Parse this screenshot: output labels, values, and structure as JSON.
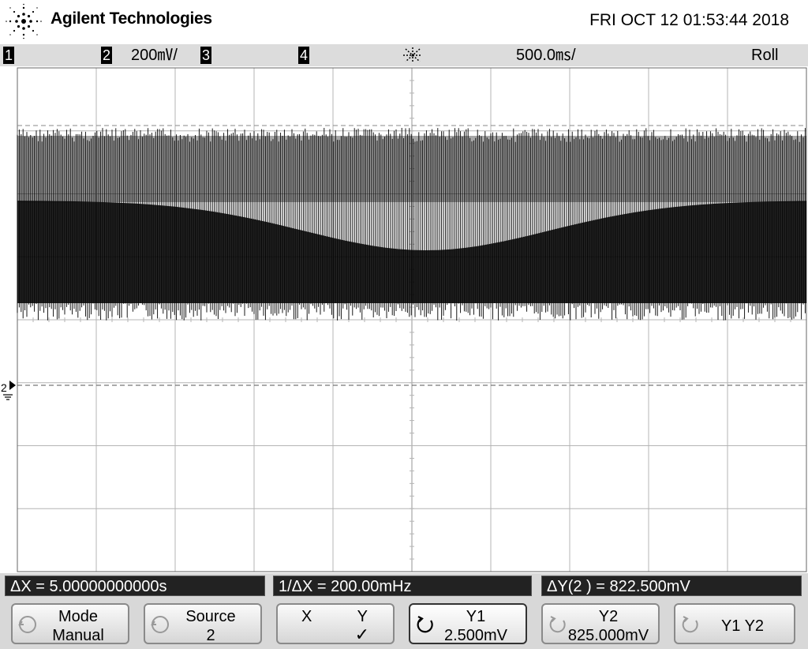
{
  "header": {
    "brand": "Agilent Technologies",
    "datetime": "FRI OCT 12 01:53:44 2018"
  },
  "status": {
    "ch1_label": "1",
    "ch2_label": "2",
    "ch2_scale": "200㎷/",
    "ch3_label": "3",
    "ch4_label": "4",
    "timebase": "500.0㎳/",
    "mode": "Roll"
  },
  "screen": {
    "ground_marker": "2",
    "trace_color": "#000000",
    "grid_color": "#b4b4b4"
  },
  "measurements": {
    "delta_x": "ΔX = 5.00000000000s",
    "inv_delta_x": "1/ΔX = 200.00mHz",
    "delta_y": "ΔY(2 ) = 822.500mV"
  },
  "softkeys": [
    {
      "line1": "Mode",
      "line2": "Manual",
      "icon": "knob-icon"
    },
    {
      "line1": "Source",
      "line2": "2",
      "icon": "knob-icon"
    },
    {
      "left": "X",
      "right": "Y",
      "check": "✓"
    },
    {
      "line1": "Y1",
      "line2": "2.500mV",
      "icon": "rotate-icon"
    },
    {
      "line1": "Y2",
      "line2": "825.000mV",
      "icon": "knob-icon"
    },
    {
      "line1": "Y1 Y2",
      "icon": "knob-icon"
    }
  ]
}
